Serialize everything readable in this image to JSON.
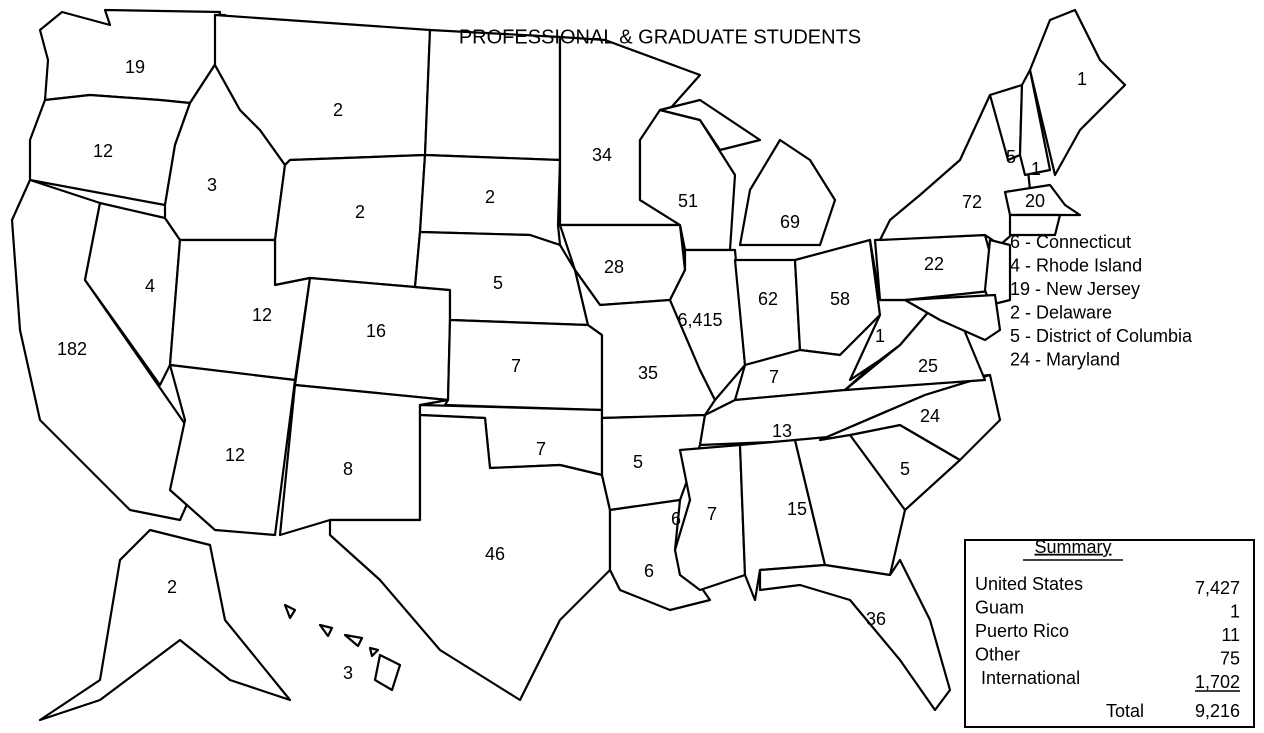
{
  "title": "PROFESSIONAL & GRADUATE STUDENTS",
  "state_counts": [
    "19",
    "12",
    "182",
    "4",
    "3",
    "2",
    "2",
    "12",
    "16",
    "12",
    "8",
    "2",
    "5",
    "7",
    "7",
    "46",
    "34",
    "28",
    "35",
    "5",
    "6",
    "6",
    "7",
    "15",
    "5",
    "36",
    "24",
    "13",
    "7",
    "25",
    "1",
    "58",
    "62",
    "6,415",
    "51",
    "69",
    "22",
    "72",
    "5",
    "1",
    "1",
    "20",
    "2",
    "3"
  ],
  "callouts": [
    "6 - Connecticut",
    "4 - Rhode Island",
    "19 - New Jersey",
    "2 - Delaware",
    "5 - District of Columbia",
    "24 - Maryland"
  ],
  "summary": {
    "heading": "Summary",
    "rows": [
      {
        "label": "United States",
        "value": "7,427"
      },
      {
        "label": "Guam",
        "value": "1"
      },
      {
        "label": "Puerto Rico",
        "value": "11"
      },
      {
        "label": "Other",
        "value": "75"
      },
      {
        "label": "International",
        "value": "1,702"
      }
    ],
    "total": {
      "label": "Total",
      "value": "9,216"
    }
  }
}
